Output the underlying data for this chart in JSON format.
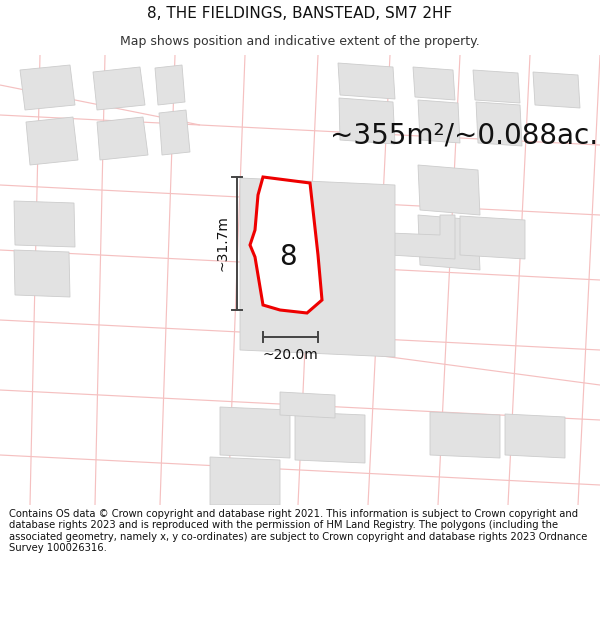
{
  "title": "8, THE FIELDINGS, BANSTEAD, SM7 2HF",
  "subtitle": "Map shows position and indicative extent of the property.",
  "area_label": "~355m²/~0.088ac.",
  "width_label": "~20.0m",
  "height_label": "~31.7m",
  "plot_number": "8",
  "footer": "Contains OS data © Crown copyright and database right 2021. This information is subject to Crown copyright and database rights 2023 and is reproduced with the permission of HM Land Registry. The polygons (including the associated geometry, namely x, y co-ordinates) are subject to Crown copyright and database rights 2023 Ordnance Survey 100026316.",
  "background_color": "#ffffff",
  "map_bg_color": "#f8f8f8",
  "building_fill": "#e2e2e2",
  "building_edge": "#cccccc",
  "road_color": "#f5c0c0",
  "plot_fill": "#ffffff",
  "plot_edge": "#ee0000",
  "dim_line_color": "#444444",
  "title_fontsize": 11,
  "subtitle_fontsize": 9,
  "area_fontsize": 20,
  "label_fontsize": 10,
  "plot_label_fontsize": 20,
  "footer_fontsize": 7.2
}
